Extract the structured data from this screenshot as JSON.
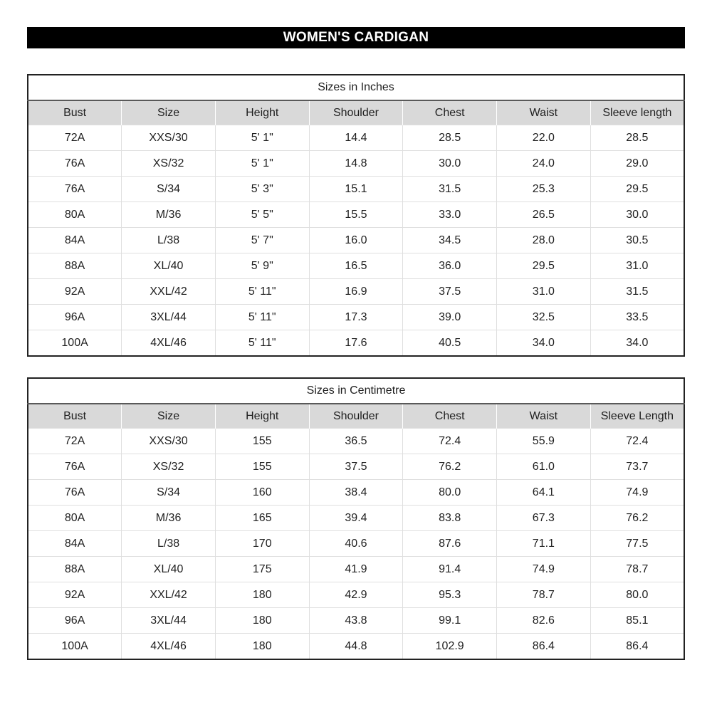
{
  "banner": {
    "title": "WOMEN'S CARDIGAN",
    "bg": "#000000",
    "fg": "#ffffff"
  },
  "colors": {
    "header_bg": "#d9d9d9",
    "outer_border": "#222222",
    "title_divider": "#595959",
    "grid_line": "#dfdfdf",
    "text": "#1f1f1f",
    "page_bg": "#ffffff"
  },
  "tables": [
    {
      "title": "Sizes in Inches",
      "columns": [
        "Bust",
        "Size",
        "Height",
        "Shoulder",
        "Chest",
        "Waist",
        "Sleeve length"
      ],
      "rows": [
        [
          "72A",
          "XXS/30",
          "5' 1\"",
          "14.4",
          "28.5",
          "22.0",
          "28.5"
        ],
        [
          "76A",
          "XS/32",
          "5' 1\"",
          "14.8",
          "30.0",
          "24.0",
          "29.0"
        ],
        [
          "76A",
          "S/34",
          "5' 3\"",
          "15.1",
          "31.5",
          "25.3",
          "29.5"
        ],
        [
          "80A",
          "M/36",
          "5' 5\"",
          "15.5",
          "33.0",
          "26.5",
          "30.0"
        ],
        [
          "84A",
          "L/38",
          "5' 7\"",
          "16.0",
          "34.5",
          "28.0",
          "30.5"
        ],
        [
          "88A",
          "XL/40",
          "5' 9\"",
          "16.5",
          "36.0",
          "29.5",
          "31.0"
        ],
        [
          "92A",
          "XXL/42",
          "5' 11\"",
          "16.9",
          "37.5",
          "31.0",
          "31.5"
        ],
        [
          "96A",
          "3XL/44",
          "5' 11\"",
          "17.3",
          "39.0",
          "32.5",
          "33.5"
        ],
        [
          "100A",
          "4XL/46",
          "5' 11\"",
          "17.6",
          "40.5",
          "34.0",
          "34.0"
        ]
      ]
    },
    {
      "title": "Sizes in Centimetre",
      "columns": [
        "Bust",
        "Size",
        "Height",
        "Shoulder",
        "Chest",
        "Waist",
        "Sleeve Length"
      ],
      "rows": [
        [
          "72A",
          "XXS/30",
          "155",
          "36.5",
          "72.4",
          "55.9",
          "72.4"
        ],
        [
          "76A",
          "XS/32",
          "155",
          "37.5",
          "76.2",
          "61.0",
          "73.7"
        ],
        [
          "76A",
          "S/34",
          "160",
          "38.4",
          "80.0",
          "64.1",
          "74.9"
        ],
        [
          "80A",
          "M/36",
          "165",
          "39.4",
          "83.8",
          "67.3",
          "76.2"
        ],
        [
          "84A",
          "L/38",
          "170",
          "40.6",
          "87.6",
          "71.1",
          "77.5"
        ],
        [
          "88A",
          "XL/40",
          "175",
          "41.9",
          "91.4",
          "74.9",
          "78.7"
        ],
        [
          "92A",
          "XXL/42",
          "180",
          "42.9",
          "95.3",
          "78.7",
          "80.0"
        ],
        [
          "96A",
          "3XL/44",
          "180",
          "43.8",
          "99.1",
          "82.6",
          "85.1"
        ],
        [
          "100A",
          "4XL/46",
          "180",
          "44.8",
          "102.9",
          "86.4",
          "86.4"
        ]
      ]
    }
  ]
}
